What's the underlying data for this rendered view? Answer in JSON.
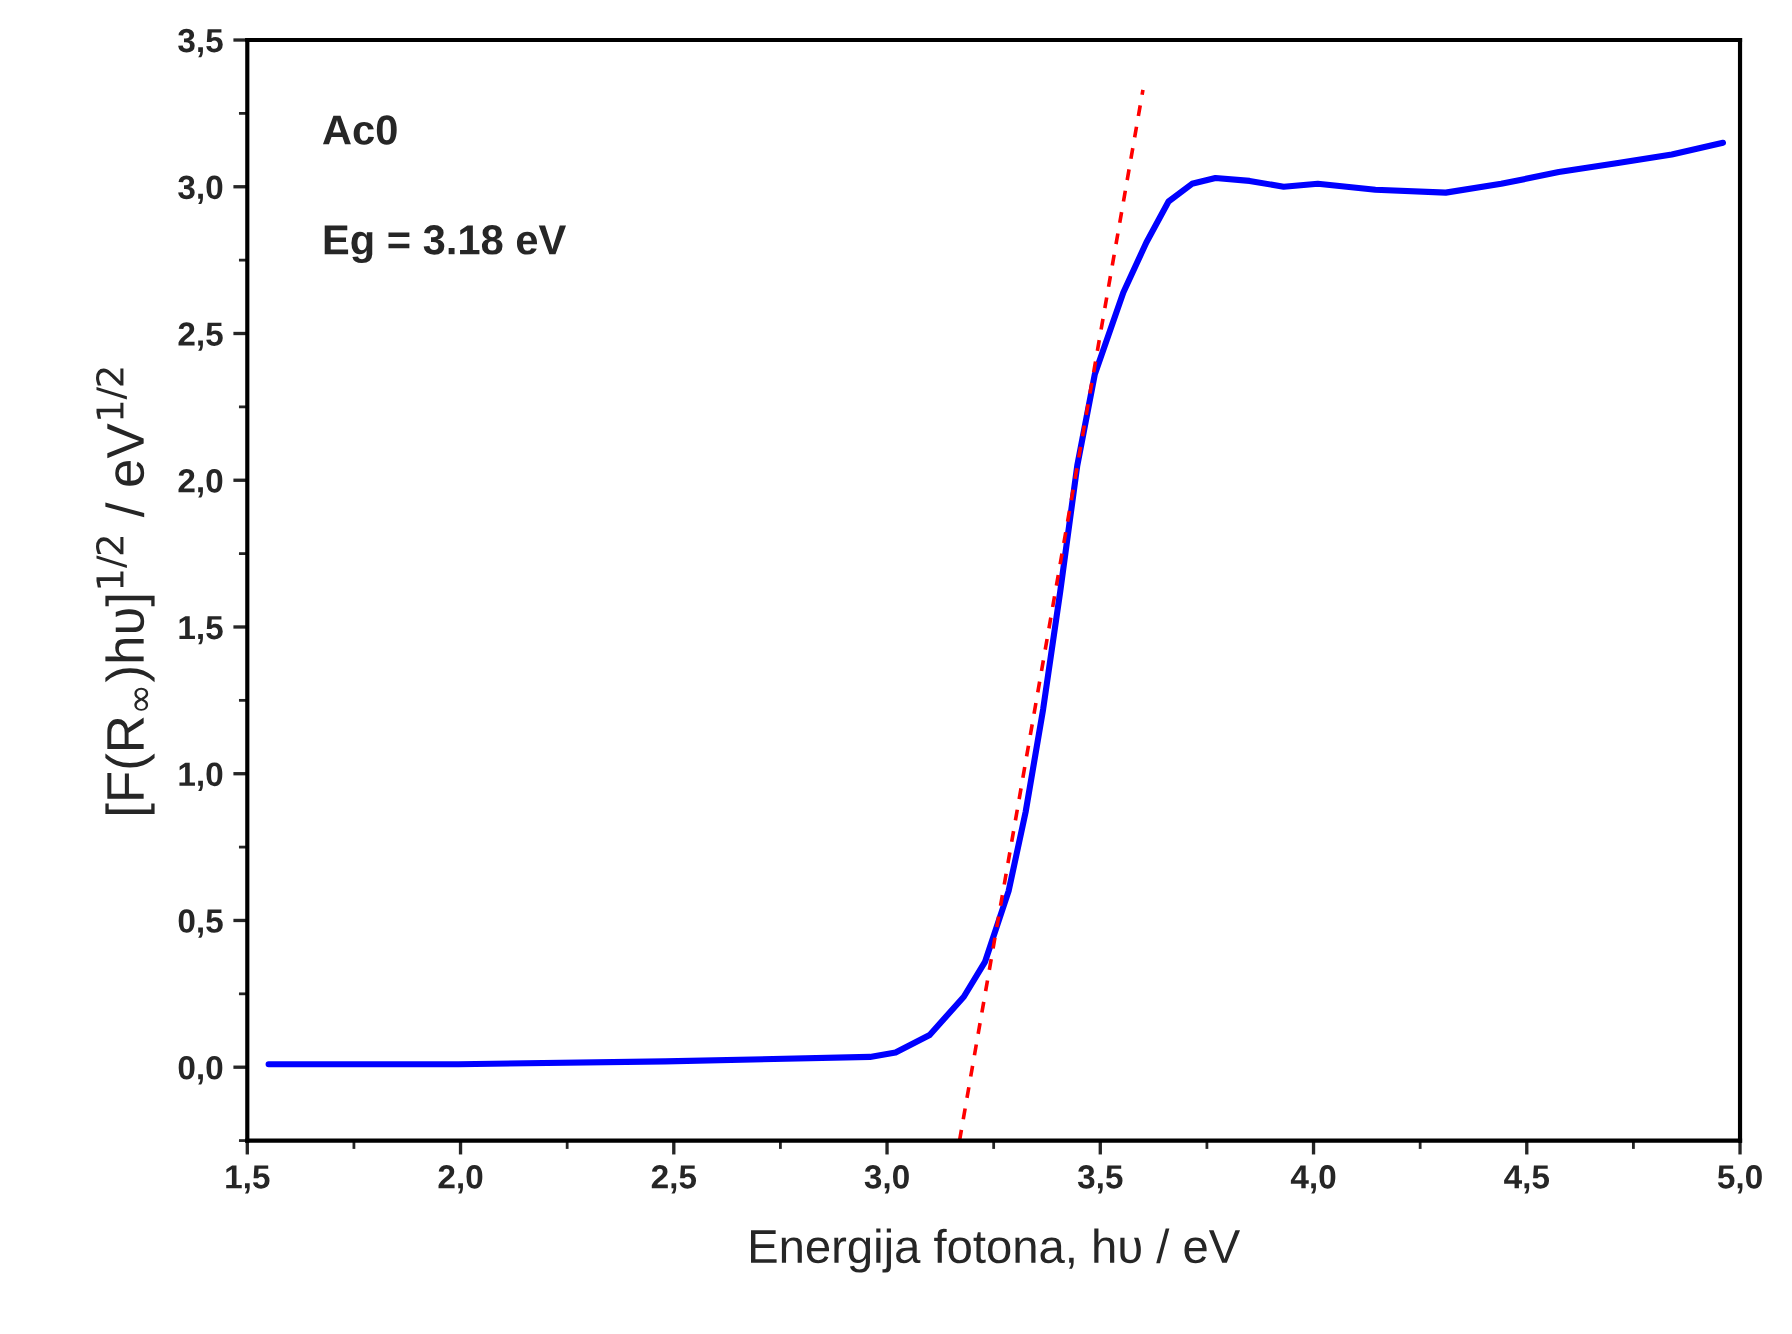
{
  "chart_data": {
    "type": "line",
    "xlabel": "Energija fotona, hυ / eV",
    "ylabel": "[F(R$_{∞}$)hυ]$^{1/2}$ / eV$^{1/2}$",
    "annotations": [
      "Ac0",
      "Eg = 3.18 eV"
    ],
    "xlim": [
      1.5,
      5.0
    ],
    "xticks": [
      {
        "value": 1.5,
        "label": "1,5"
      },
      {
        "value": 2.0,
        "label": "2,0"
      },
      {
        "value": 2.5,
        "label": "2,5"
      },
      {
        "value": 3.0,
        "label": "3,0"
      },
      {
        "value": 3.5,
        "label": "3,5"
      },
      {
        "value": 4.0,
        "label": "4,0"
      },
      {
        "value": 4.5,
        "label": "4,5"
      },
      {
        "value": 5.0,
        "label": "5,0"
      }
    ],
    "ylim": [
      -0.25,
      3.5
    ],
    "yticks": [
      {
        "value": 0.0,
        "label": "0,0"
      },
      {
        "value": 0.5,
        "label": "0,5"
      },
      {
        "value": 1.0,
        "label": "1,0"
      },
      {
        "value": 1.5,
        "label": "1,5"
      },
      {
        "value": 2.0,
        "label": "2,0"
      },
      {
        "value": 2.5,
        "label": "2,5"
      },
      {
        "value": 3.0,
        "label": "3,0"
      },
      {
        "value": 3.5,
        "label": "3,5"
      }
    ],
    "grid": false,
    "legend": false,
    "series": [
      {
        "color": "#0000ff",
        "line_style": "solid",
        "x": [
          1.55,
          1.995,
          2.48,
          2.96,
          3.02,
          3.1,
          3.18,
          3.23,
          3.285,
          3.325,
          3.366,
          3.406,
          3.446,
          3.487,
          3.554,
          3.608,
          3.66,
          3.715,
          3.77,
          3.85,
          3.93,
          4.01,
          4.145,
          4.31,
          4.44,
          4.575,
          4.71,
          4.84,
          4.96
        ],
        "values": [
          0.01,
          0.01,
          0.02,
          0.035,
          0.05,
          0.11,
          0.24,
          0.36,
          0.6,
          0.87,
          1.22,
          1.62,
          2.05,
          2.36,
          2.64,
          2.81,
          2.95,
          3.01,
          3.03,
          3.02,
          3.0,
          3.01,
          2.99,
          2.98,
          3.01,
          3.05,
          3.08,
          3.11,
          3.15
        ]
      },
      {
        "color": "#ff0000",
        "line_style": "dashed",
        "x": [
          3.17,
          3.6
        ],
        "values": [
          -0.25,
          3.33
        ]
      }
    ]
  }
}
